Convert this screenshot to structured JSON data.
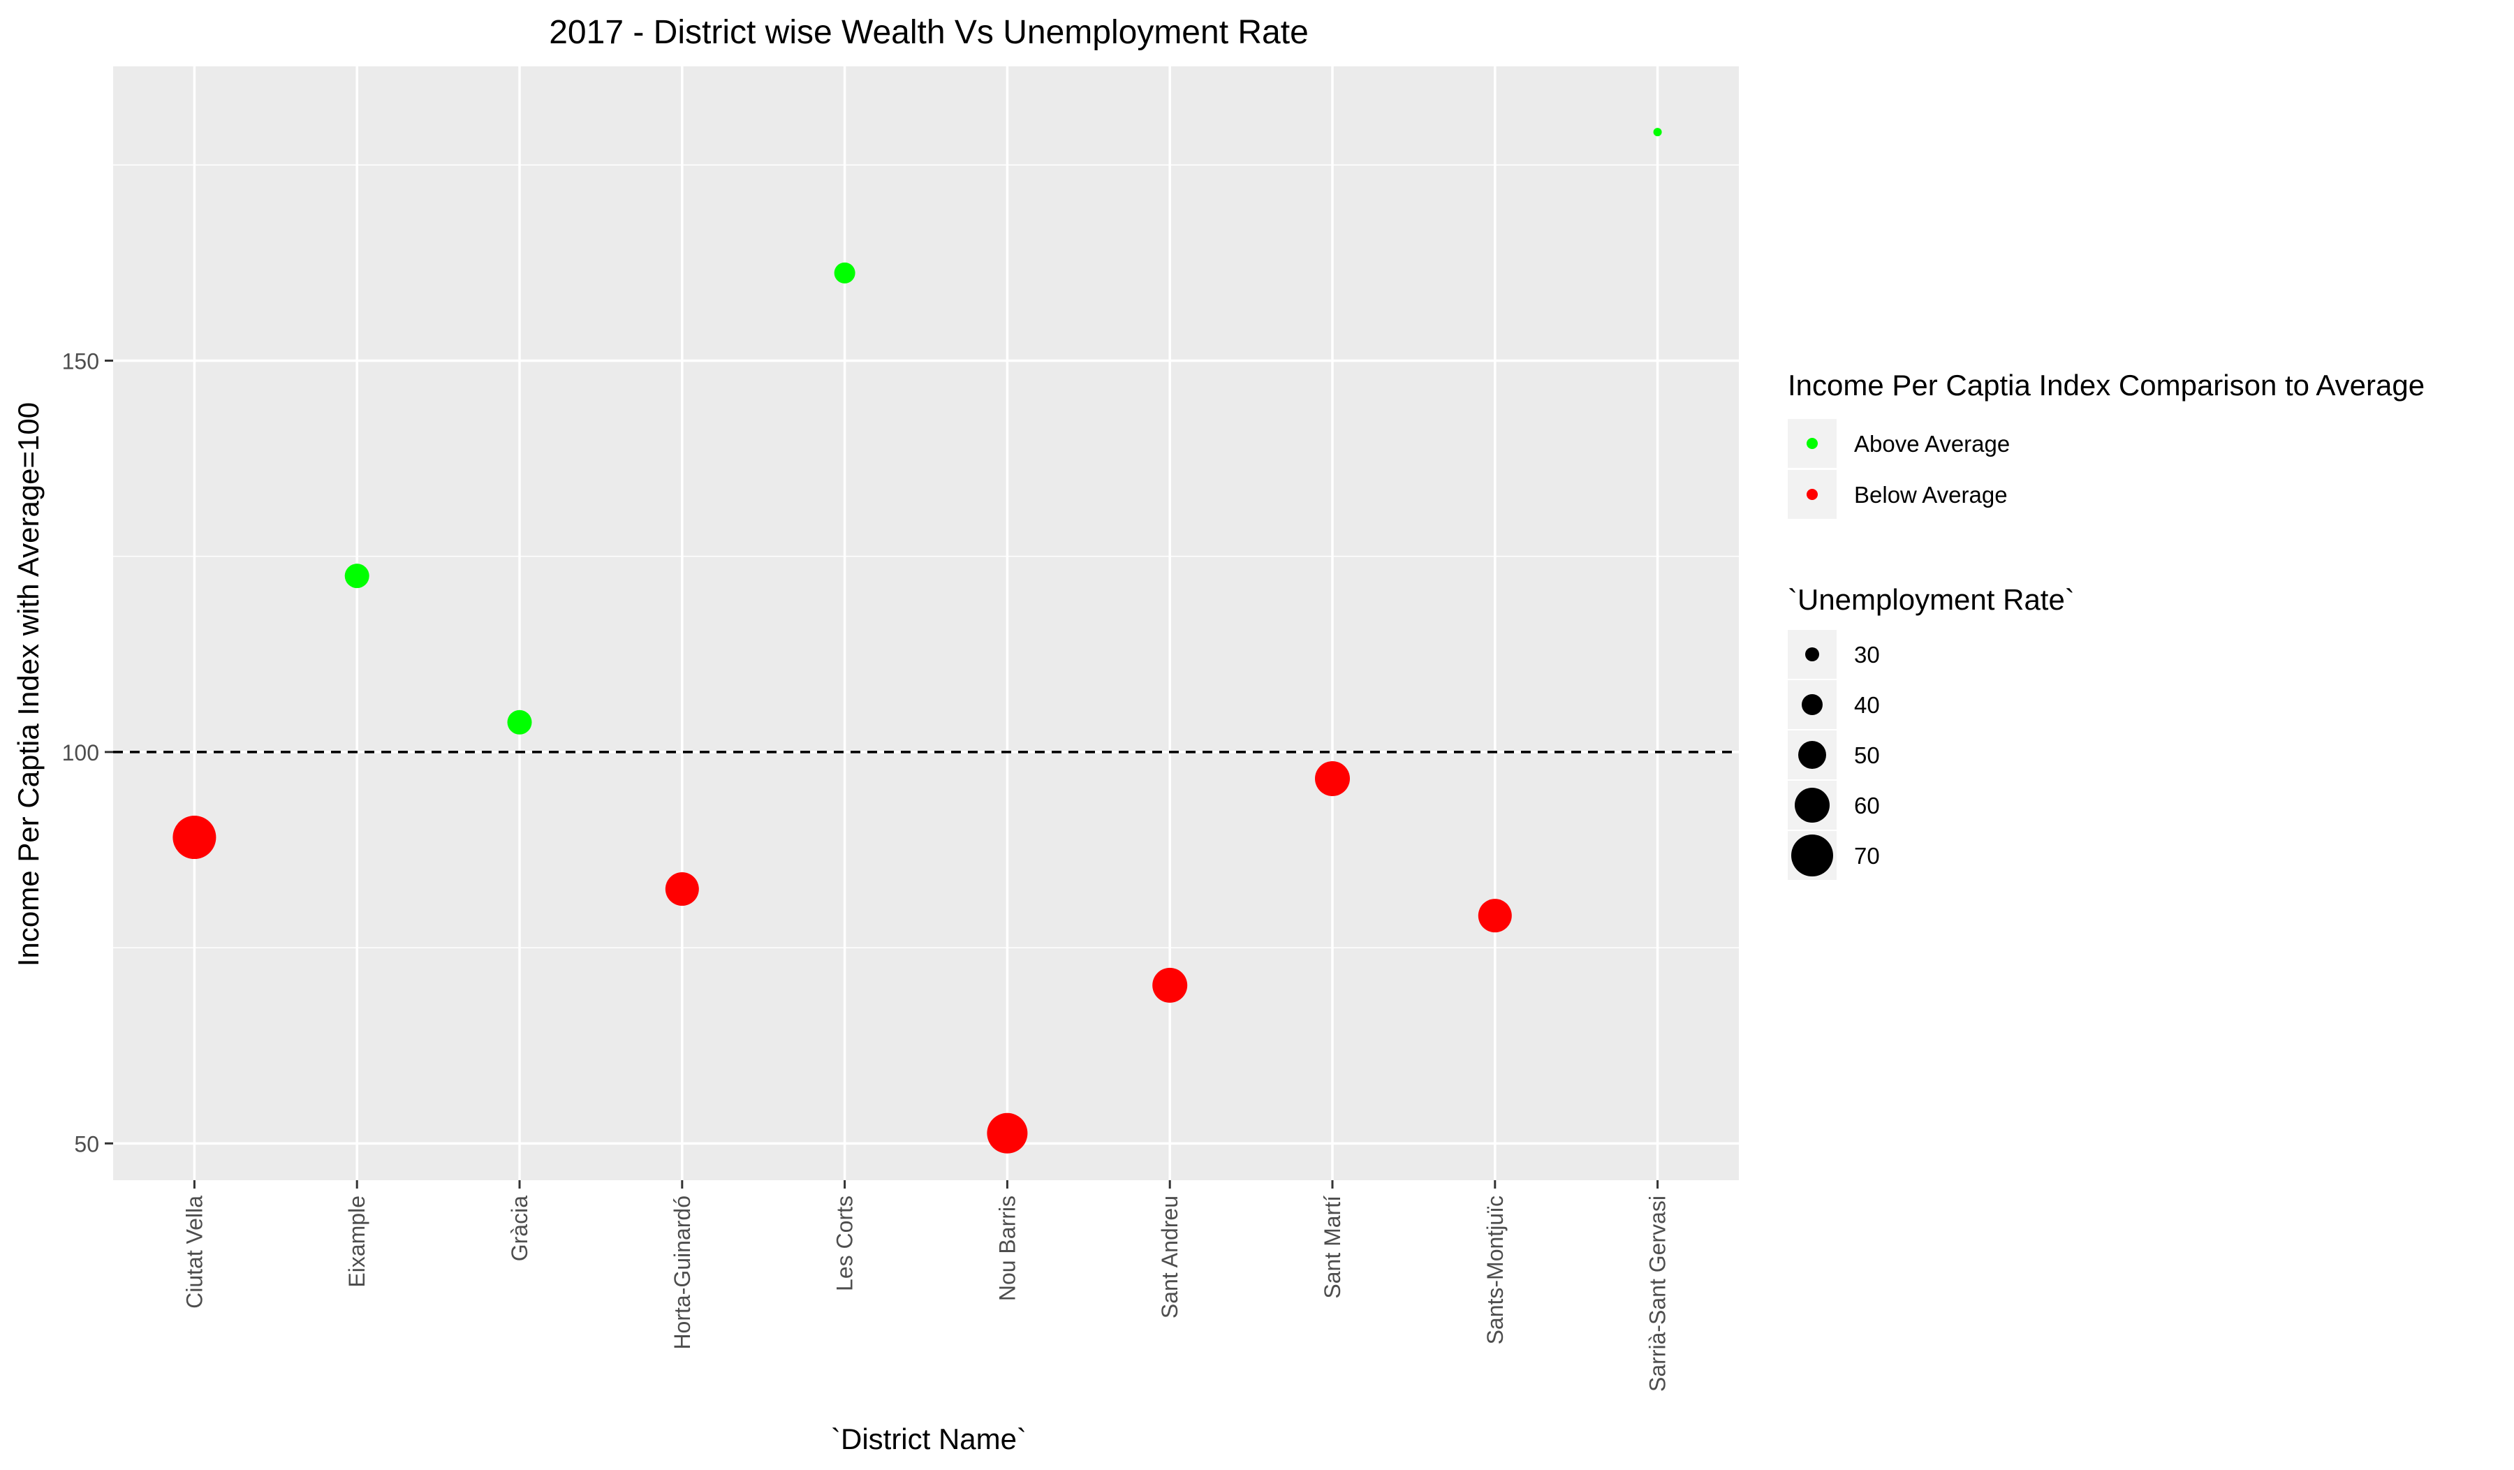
{
  "chart_data": {
    "type": "scatter",
    "title": "2017 - District wise Wealth Vs Unemployment Rate",
    "xlabel": "`District Name`",
    "ylabel": "Income Per Captia Index with Average=100",
    "ylim": [
      45.3,
      187.6
    ],
    "yticks": [
      50,
      100,
      150
    ],
    "grid": true,
    "legend_position": "right",
    "reference_line": {
      "y": 100,
      "style": "dashed"
    },
    "categories": [
      "Ciutat Vella",
      "Eixample",
      "Gràcia",
      "Horta-Guinardó",
      "Les Corts",
      "Nou Barris",
      "Sant Andreu",
      "Sant Martí",
      "Sants-Montjuïc",
      "Sarrià-Sant Gervasi"
    ],
    "points": [
      {
        "x": "Ciutat Vella",
        "y": 89.1,
        "group": "Below Average",
        "unemployment_rate": 72
      },
      {
        "x": "Eixample",
        "y": 122.5,
        "group": "Above Average",
        "unemployment_rate": 45
      },
      {
        "x": "Gràcia",
        "y": 103.8,
        "group": "Above Average",
        "unemployment_rate": 45
      },
      {
        "x": "Horta-Guinardó",
        "y": 82.5,
        "group": "Below Average",
        "unemployment_rate": 58
      },
      {
        "x": "Les Corts",
        "y": 161.2,
        "group": "Above Average",
        "unemployment_rate": 40
      },
      {
        "x": "Nou Barris",
        "y": 51.3,
        "group": "Below Average",
        "unemployment_rate": 68
      },
      {
        "x": "Sant Andreu",
        "y": 70.2,
        "group": "Below Average",
        "unemployment_rate": 60
      },
      {
        "x": "Sant Martí",
        "y": 96.6,
        "group": "Below Average",
        "unemployment_rate": 60
      },
      {
        "x": "Sants-Montjuïc",
        "y": 79.1,
        "group": "Below Average",
        "unemployment_rate": 58
      },
      {
        "x": "Sarrià-Sant Gervasi",
        "y": 179.2,
        "group": "Above Average",
        "unemployment_rate": 22
      }
    ],
    "legend_color": {
      "title": "Income Per Captia Index Comparison to Average",
      "entries": [
        {
          "label": "Above Average",
          "color": "#00FF00"
        },
        {
          "label": "Below Average",
          "color": "#FF0000"
        }
      ]
    },
    "legend_size": {
      "title": "`Unemployment Rate`",
      "entries": [
        {
          "label": "30",
          "value": 30
        },
        {
          "label": "40",
          "value": 40
        },
        {
          "label": "50",
          "value": 50
        },
        {
          "label": "60",
          "value": 60
        },
        {
          "label": "70",
          "value": 70
        }
      ]
    }
  },
  "colors": {
    "panel_background": "#EBEBEB",
    "gridline": "#FFFFFF",
    "above_average": "#00FF00",
    "below_average": "#FF0000"
  }
}
